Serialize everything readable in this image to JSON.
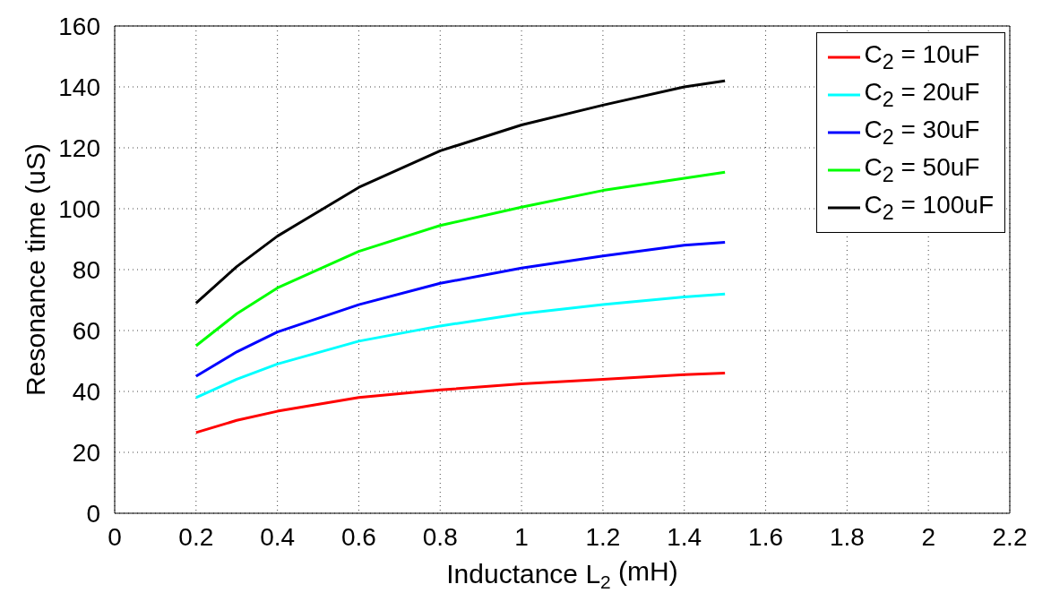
{
  "chart_data": {
    "type": "line",
    "xlabel": "Inductance L$_{2}$ (mH)",
    "ylabel": "Resonance time (uS)",
    "x": [
      0.2,
      0.3,
      0.4,
      0.6,
      0.8,
      1.0,
      1.2,
      1.4,
      1.5
    ],
    "series": [
      {
        "name": "C$_{2}$ = 10uF",
        "color": "#ff0000",
        "values": [
          26.5,
          30.5,
          33.5,
          38,
          40.5,
          42.5,
          44,
          45.5,
          46
        ]
      },
      {
        "name": "C$_{2}$ = 20uF",
        "color": "#00ffff",
        "values": [
          38,
          44,
          49,
          56.5,
          61.5,
          65.5,
          68.5,
          71,
          72
        ]
      },
      {
        "name": "C$_{2}$ = 30uF",
        "color": "#0000ff",
        "values": [
          45,
          53,
          59.5,
          68.5,
          75.5,
          80.5,
          84.5,
          88,
          89
        ]
      },
      {
        "name": "C$_{2}$ = 50uF",
        "color": "#00ff00",
        "values": [
          55,
          65.5,
          74,
          86,
          94.5,
          100.5,
          106,
          110,
          112
        ]
      },
      {
        "name": "C$_{2}$ = 100uF",
        "color": "#000000",
        "values": [
          69,
          81,
          91,
          107,
          119,
          127.5,
          134,
          140,
          142
        ]
      }
    ],
    "xlim": [
      0,
      2.2
    ],
    "xticks": [
      0,
      0.2,
      0.4,
      0.6,
      0.8,
      1,
      1.2,
      1.4,
      1.6,
      1.8,
      2,
      2.2
    ],
    "ylim": [
      0,
      160
    ],
    "yticks": [
      0,
      20,
      40,
      60,
      80,
      100,
      120,
      140,
      160
    ],
    "grid": true,
    "legend": "top right",
    "marker": "none",
    "line_style": "solid"
  }
}
